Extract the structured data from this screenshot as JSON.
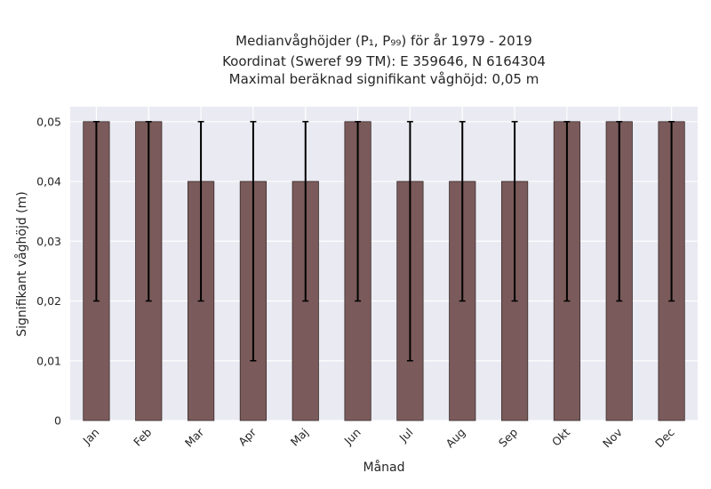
{
  "chart_data": {
    "type": "bar",
    "title_lines": [
      "Medianvåghöjder (P₁, P₉₉) för år 1979 - 2019",
      "Koordinat (Sweref 99 TM): E 359646, N 6164304",
      "Maximal beräknad signifikant våghöjd: 0,05 m"
    ],
    "xlabel": "Månad",
    "ylabel": "Signifikant våghöjd (m)",
    "categories": [
      "Jan",
      "Feb",
      "Mar",
      "Apr",
      "Maj",
      "Jun",
      "Jul",
      "Aug",
      "Sep",
      "Okt",
      "Nov",
      "Dec"
    ],
    "values": [
      0.05,
      0.05,
      0.04,
      0.04,
      0.04,
      0.05,
      0.04,
      0.04,
      0.04,
      0.05,
      0.05,
      0.05
    ],
    "err_low": [
      0.02,
      0.02,
      0.02,
      0.01,
      0.02,
      0.02,
      0.01,
      0.02,
      0.02,
      0.02,
      0.02,
      0.02
    ],
    "err_high": [
      0.05,
      0.05,
      0.05,
      0.05,
      0.05,
      0.05,
      0.05,
      0.05,
      0.05,
      0.05,
      0.05,
      0.05
    ],
    "ylim": [
      0,
      0.0525
    ],
    "yticks": [
      0,
      0.01,
      0.02,
      0.03,
      0.04,
      0.05
    ],
    "ytick_labels": [
      "0",
      "0,01",
      "0,02",
      "0,03",
      "0,04",
      "0,05"
    ],
    "grid": true,
    "colors": {
      "bar": "#7a5a5a",
      "bar_edge": "#3a2e2e",
      "error": "#000000",
      "plot_bg": "#eaeaf2",
      "grid": "#ffffff"
    }
  }
}
